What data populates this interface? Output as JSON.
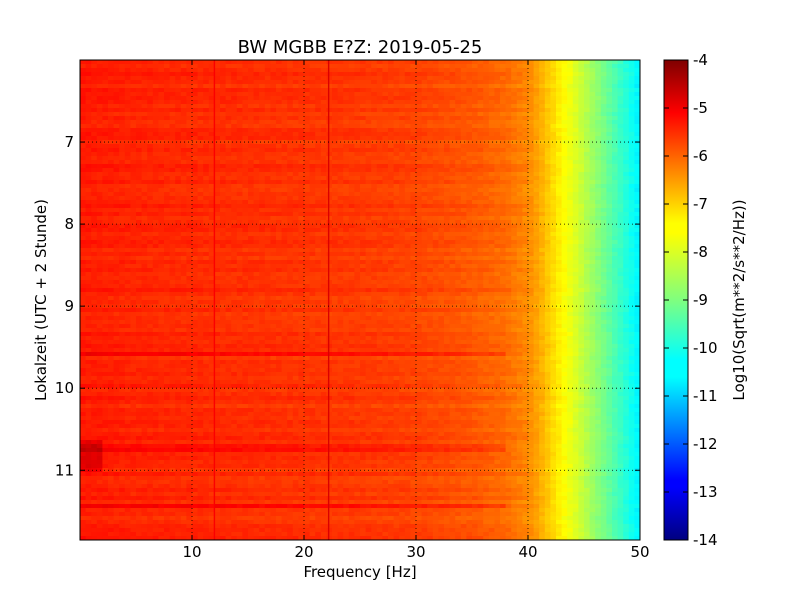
{
  "chart_data": {
    "type": "heatmap",
    "title": "BW MGBB E?Z: 2019-05-25",
    "xlabel": "Frequency [Hz]",
    "ylabel": "Lokalzeit (UTC + 2 Stunde)",
    "xlim": [
      0,
      50
    ],
    "ylim": [
      11.85,
      6.0
    ],
    "x_ticks": [
      {
        "value": 10,
        "label": "10"
      },
      {
        "value": 20,
        "label": "20"
      },
      {
        "value": 30,
        "label": "30"
      },
      {
        "value": 40,
        "label": "40"
      },
      {
        "value": 50,
        "label": "50"
      }
    ],
    "y_ticks": [
      {
        "value": 7,
        "label": "7"
      },
      {
        "value": 8,
        "label": "8"
      },
      {
        "value": 9,
        "label": "9"
      },
      {
        "value": 10,
        "label": "10"
      },
      {
        "value": 11,
        "label": "11"
      }
    ],
    "grid": true,
    "colormap": "jet",
    "colorbar": {
      "label": "Log10(Sqrt(m**2/s**2/Hz))",
      "range": [
        -14,
        -4
      ],
      "ticks": [
        "-4",
        "-5",
        "-6",
        "-7",
        "-8",
        "-9",
        "-10",
        "-11",
        "-12",
        "-13",
        "-14"
      ]
    },
    "spectrum_profile": {
      "frequency": [
        0,
        5,
        10,
        15,
        20,
        25,
        30,
        35,
        38,
        40,
        41,
        42,
        43,
        44,
        45,
        46,
        47,
        48,
        49,
        50
      ],
      "level": [
        -5.5,
        -5.6,
        -5.65,
        -5.7,
        -5.75,
        -5.8,
        -5.9,
        -6.1,
        -6.3,
        -6.6,
        -6.9,
        -7.3,
        -7.7,
        -8.0,
        -8.4,
        -8.8,
        -9.2,
        -9.6,
        -10.0,
        -10.4
      ]
    },
    "spectral_lines": [
      {
        "frequency": 12.0,
        "level": -5.2
      },
      {
        "frequency": 22.2,
        "level": -4.9
      }
    ],
    "high_noise_times": [
      9.55,
      10.7,
      11.4
    ],
    "colors": {
      "dark_red": "#7f0000",
      "red": "#ff0000",
      "orange": "#ff8000",
      "yellow": "#ffff00",
      "cyan": "#00ffff",
      "blue": "#0000ff",
      "navy": "#00007f"
    }
  }
}
